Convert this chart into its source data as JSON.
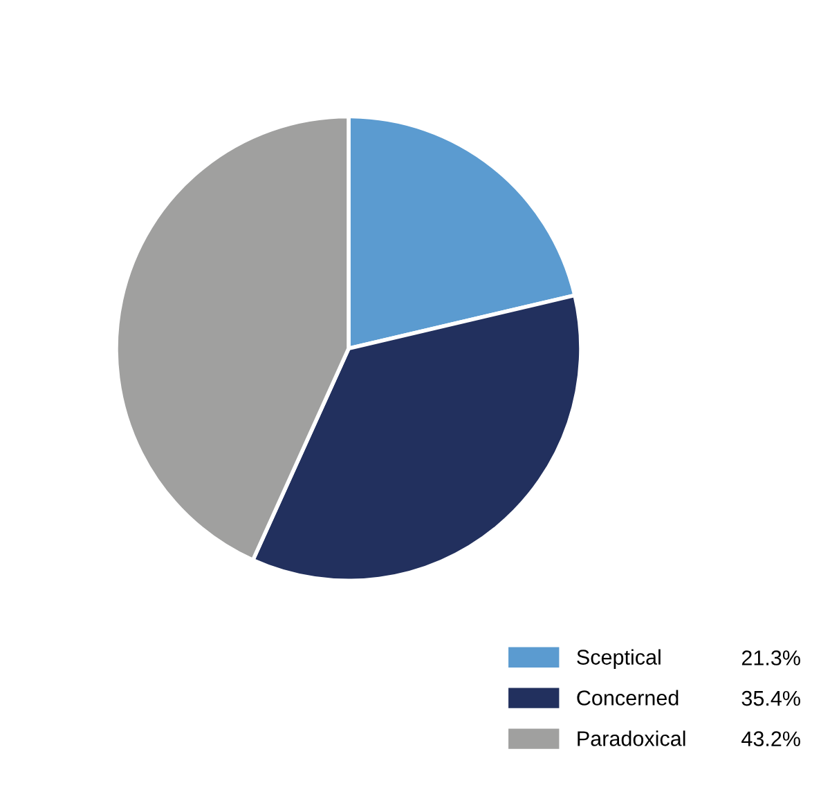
{
  "chart_data": {
    "type": "pie",
    "categories": [
      "Sceptical",
      "Concerned",
      "Paradoxical"
    ],
    "values": [
      21.3,
      35.4,
      43.2
    ],
    "colors": [
      "#5b9bd0",
      "#22305e",
      "#a0a09f"
    ],
    "value_labels": [
      "21.3%",
      "35.4%",
      "43.2%"
    ],
    "legend": "bottom right"
  }
}
